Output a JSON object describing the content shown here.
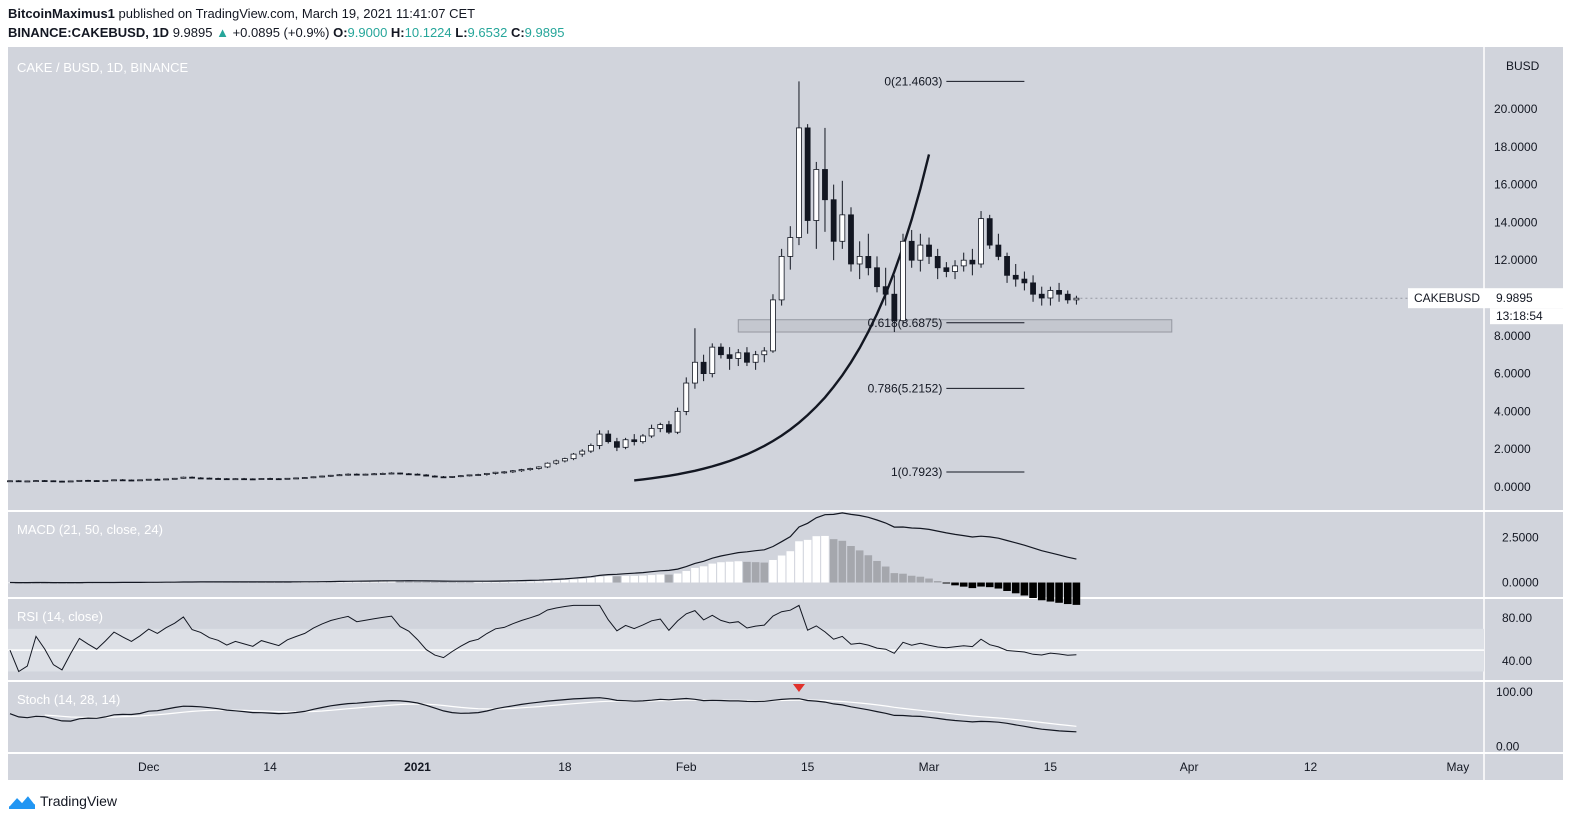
{
  "header": {
    "author": "BitcoinMaximus1",
    "published_text": "published on TradingView.com, March 19, 2021 11:41:07 CET",
    "symbol": "BINANCE:CAKEBUSD, 1D",
    "last": "9.9895",
    "change_arrow": "▲",
    "change": "+0.0895 (+0.9%)",
    "o_label": "O:",
    "o": "9.9000",
    "h_label": "H:",
    "h": "10.1224",
    "l_label": "L:",
    "l": "9.6532",
    "c_label": "C:",
    "c": "9.9895"
  },
  "colors": {
    "panel_bg": "#d1d4dc",
    "up": "#ffffff",
    "down": "#131722",
    "accent": "#26a69a",
    "signal": "#e0312b",
    "line": "#131722"
  },
  "footer": {
    "brand": "TradingView",
    "logo_icon": "tradingview-logo-icon"
  },
  "chart_data": {
    "type": "candlestick",
    "title": "CAKE / BUSD, 1D, BINANCE",
    "currency": "BUSD",
    "y_axis_labels": [
      "20.0000",
      "18.0000",
      "16.0000",
      "14.0000",
      "12.0000",
      "10.0000",
      "8.0000",
      "6.0000",
      "4.0000",
      "2.0000",
      "0.0000"
    ],
    "x_axis_labels": [
      "Dec",
      "14",
      "2021",
      "18",
      "Feb",
      "15",
      "Mar",
      "15",
      "Apr",
      "12",
      "May"
    ],
    "x_axis_day_index": [
      16,
      30,
      47,
      64,
      78,
      92,
      106,
      120,
      136,
      150,
      167
    ],
    "price_tag": {
      "label": "CAKEBUSD",
      "value": "9.9895",
      "countdown": "13:18:54"
    },
    "candles_start_day": 0,
    "candles": [
      [
        0.32,
        0.35,
        0.3,
        0.33
      ],
      [
        0.33,
        0.36,
        0.3,
        0.31
      ],
      [
        0.31,
        0.34,
        0.29,
        0.32
      ],
      [
        0.32,
        0.36,
        0.3,
        0.34
      ],
      [
        0.34,
        0.37,
        0.31,
        0.33
      ],
      [
        0.33,
        0.35,
        0.3,
        0.31
      ],
      [
        0.31,
        0.33,
        0.28,
        0.3
      ],
      [
        0.3,
        0.33,
        0.28,
        0.32
      ],
      [
        0.32,
        0.36,
        0.3,
        0.35
      ],
      [
        0.35,
        0.38,
        0.32,
        0.34
      ],
      [
        0.34,
        0.36,
        0.31,
        0.33
      ],
      [
        0.33,
        0.36,
        0.31,
        0.35
      ],
      [
        0.35,
        0.4,
        0.33,
        0.38
      ],
      [
        0.38,
        0.42,
        0.35,
        0.37
      ],
      [
        0.37,
        0.4,
        0.34,
        0.36
      ],
      [
        0.36,
        0.39,
        0.33,
        0.38
      ],
      [
        0.38,
        0.42,
        0.36,
        0.41
      ],
      [
        0.41,
        0.45,
        0.38,
        0.4
      ],
      [
        0.4,
        0.44,
        0.37,
        0.43
      ],
      [
        0.43,
        0.48,
        0.4,
        0.46
      ],
      [
        0.46,
        0.55,
        0.44,
        0.52
      ],
      [
        0.52,
        0.56,
        0.46,
        0.48
      ],
      [
        0.48,
        0.52,
        0.44,
        0.47
      ],
      [
        0.47,
        0.5,
        0.43,
        0.45
      ],
      [
        0.45,
        0.49,
        0.42,
        0.44
      ],
      [
        0.44,
        0.47,
        0.4,
        0.42
      ],
      [
        0.42,
        0.46,
        0.4,
        0.44
      ],
      [
        0.44,
        0.48,
        0.41,
        0.43
      ],
      [
        0.43,
        0.46,
        0.4,
        0.42
      ],
      [
        0.42,
        0.46,
        0.4,
        0.45
      ],
      [
        0.45,
        0.49,
        0.42,
        0.44
      ],
      [
        0.44,
        0.47,
        0.41,
        0.43
      ],
      [
        0.43,
        0.47,
        0.41,
        0.46
      ],
      [
        0.46,
        0.5,
        0.43,
        0.48
      ],
      [
        0.48,
        0.52,
        0.45,
        0.5
      ],
      [
        0.5,
        0.56,
        0.47,
        0.54
      ],
      [
        0.54,
        0.6,
        0.5,
        0.58
      ],
      [
        0.58,
        0.64,
        0.54,
        0.62
      ],
      [
        0.62,
        0.68,
        0.58,
        0.65
      ],
      [
        0.65,
        0.72,
        0.6,
        0.68
      ],
      [
        0.68,
        0.72,
        0.62,
        0.66
      ],
      [
        0.66,
        0.7,
        0.62,
        0.68
      ],
      [
        0.68,
        0.74,
        0.64,
        0.7
      ],
      [
        0.7,
        0.76,
        0.66,
        0.72
      ],
      [
        0.72,
        0.78,
        0.68,
        0.74
      ],
      [
        0.74,
        0.76,
        0.66,
        0.7
      ],
      [
        0.7,
        0.74,
        0.64,
        0.68
      ],
      [
        0.68,
        0.72,
        0.62,
        0.64
      ],
      [
        0.64,
        0.68,
        0.56,
        0.58
      ],
      [
        0.58,
        0.62,
        0.5,
        0.54
      ],
      [
        0.54,
        0.58,
        0.48,
        0.52
      ],
      [
        0.52,
        0.58,
        0.48,
        0.56
      ],
      [
        0.56,
        0.62,
        0.52,
        0.6
      ],
      [
        0.6,
        0.66,
        0.56,
        0.64
      ],
      [
        0.64,
        0.7,
        0.58,
        0.66
      ],
      [
        0.66,
        0.74,
        0.6,
        0.72
      ],
      [
        0.72,
        0.8,
        0.66,
        0.78
      ],
      [
        0.78,
        0.84,
        0.7,
        0.8
      ],
      [
        0.8,
        0.9,
        0.74,
        0.86
      ],
      [
        0.86,
        0.96,
        0.8,
        0.92
      ],
      [
        0.92,
        1.02,
        0.86,
        0.98
      ],
      [
        0.98,
        1.1,
        0.92,
        1.06
      ],
      [
        1.06,
        1.3,
        1.0,
        1.26
      ],
      [
        1.26,
        1.45,
        1.18,
        1.38
      ],
      [
        1.38,
        1.55,
        1.3,
        1.5
      ],
      [
        1.5,
        1.8,
        1.42,
        1.74
      ],
      [
        1.74,
        2.0,
        1.6,
        1.9
      ],
      [
        1.9,
        2.3,
        1.8,
        2.2
      ],
      [
        2.2,
        3.0,
        2.0,
        2.8
      ],
      [
        2.8,
        3.0,
        2.3,
        2.4
      ],
      [
        2.4,
        2.6,
        1.9,
        2.1
      ],
      [
        2.1,
        2.6,
        2.0,
        2.5
      ],
      [
        2.5,
        2.8,
        2.2,
        2.4
      ],
      [
        2.4,
        2.8,
        2.3,
        2.7
      ],
      [
        2.7,
        3.3,
        2.6,
        3.1
      ],
      [
        3.1,
        3.4,
        2.9,
        3.3
      ],
      [
        3.3,
        3.5,
        2.8,
        2.9
      ],
      [
        2.9,
        4.2,
        2.8,
        4.0
      ],
      [
        4.0,
        5.8,
        3.8,
        5.5
      ],
      [
        5.5,
        8.4,
        5.2,
        6.6
      ],
      [
        6.6,
        7.0,
        5.6,
        6.0
      ],
      [
        6.0,
        7.6,
        5.8,
        7.4
      ],
      [
        7.4,
        7.6,
        6.8,
        7.0
      ],
      [
        7.0,
        7.4,
        6.2,
        6.8
      ],
      [
        6.8,
        7.3,
        6.4,
        7.1
      ],
      [
        7.1,
        7.4,
        6.4,
        6.6
      ],
      [
        6.6,
        7.2,
        6.2,
        7.0
      ],
      [
        7.0,
        7.4,
        6.6,
        7.2
      ],
      [
        7.2,
        10.2,
        7.1,
        9.9
      ],
      [
        9.9,
        12.6,
        9.6,
        12.2
      ],
      [
        12.2,
        13.8,
        11.5,
        13.2
      ],
      [
        13.2,
        21.46,
        12.8,
        19.0
      ],
      [
        19.0,
        19.2,
        13.4,
        14.1
      ],
      [
        14.1,
        17.2,
        12.6,
        16.8
      ],
      [
        16.8,
        19.0,
        13.5,
        15.2
      ],
      [
        15.2,
        16.0,
        12.0,
        13.0
      ],
      [
        13.0,
        16.2,
        12.6,
        14.4
      ],
      [
        14.4,
        14.8,
        11.4,
        11.8
      ],
      [
        11.8,
        13.0,
        11.0,
        12.2
      ],
      [
        12.2,
        13.4,
        11.2,
        11.6
      ],
      [
        11.6,
        12.2,
        10.3,
        10.6
      ],
      [
        10.6,
        11.6,
        9.6,
        10.2
      ],
      [
        10.2,
        11.2,
        8.2,
        8.8
      ],
      [
        8.8,
        13.4,
        8.6,
        13.0
      ],
      [
        13.0,
        13.6,
        11.6,
        12.0
      ],
      [
        12.0,
        13.4,
        11.4,
        12.8
      ],
      [
        12.8,
        13.2,
        11.8,
        12.2
      ],
      [
        12.2,
        12.6,
        11.0,
        11.6
      ],
      [
        11.6,
        11.9,
        11.1,
        11.4
      ],
      [
        11.4,
        12.0,
        11.0,
        11.7
      ],
      [
        11.7,
        12.4,
        11.4,
        12.0
      ],
      [
        12.0,
        12.6,
        11.2,
        11.8
      ],
      [
        11.8,
        14.6,
        11.6,
        14.2
      ],
      [
        14.2,
        14.4,
        12.6,
        12.8
      ],
      [
        12.8,
        13.4,
        12.0,
        12.2
      ],
      [
        12.2,
        12.4,
        10.8,
        11.2
      ],
      [
        11.2,
        11.8,
        10.6,
        11.0
      ],
      [
        11.0,
        11.4,
        10.4,
        10.8
      ],
      [
        10.8,
        11.2,
        9.8,
        10.2
      ],
      [
        10.2,
        10.6,
        9.6,
        10.0
      ],
      [
        10.0,
        10.6,
        9.6,
        10.4
      ],
      [
        10.4,
        10.8,
        9.8,
        10.2
      ],
      [
        10.2,
        10.4,
        9.7,
        9.9
      ],
      [
        9.9,
        10.12,
        9.65,
        9.99
      ]
    ],
    "fibonacci": [
      {
        "label": "0(21.4603)",
        "value": 21.4603
      },
      {
        "label": "0.618(8.6875)",
        "value": 8.6875
      },
      {
        "label": "0.786(5.2152)",
        "value": 5.2152
      },
      {
        "label": "1(0.7923)",
        "value": 0.7923
      }
    ],
    "support_zone": {
      "low": 8.2,
      "high": 8.85
    },
    "macd": {
      "title": "MACD (21, 50, close, 24)",
      "y_axis_labels": [
        "2.5000",
        "0.0000"
      ],
      "ylim": [
        -0.8,
        3.9
      ]
    },
    "rsi": {
      "title": "RSI (14, close)",
      "y_axis_labels": [
        "80.00",
        "40.00"
      ],
      "ylim": [
        22,
        98
      ]
    },
    "stoch": {
      "title": "Stoch (14, 28, 14)",
      "y_axis_labels": [
        "100.00",
        "0.00"
      ],
      "ylim": [
        -10,
        118
      ]
    }
  }
}
